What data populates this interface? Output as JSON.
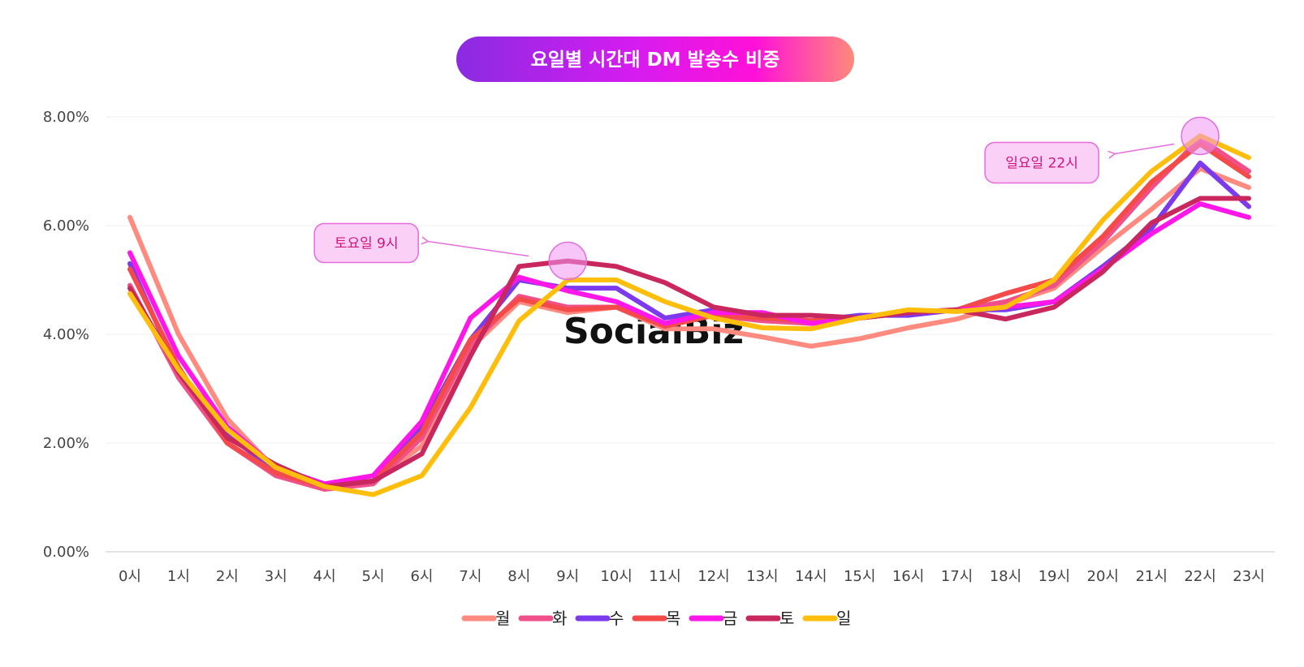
{
  "chart_data": {
    "type": "line",
    "title": "요일별 시간대 DM 발송수 비중",
    "x": [
      "0시",
      "1시",
      "2시",
      "3시",
      "4시",
      "5시",
      "6시",
      "7시",
      "8시",
      "9시",
      "10시",
      "11시",
      "12시",
      "13시",
      "14시",
      "15시",
      "16시",
      "17시",
      "18시",
      "19시",
      "20시",
      "21시",
      "22시",
      "23시"
    ],
    "ylim": [
      0,
      8
    ],
    "yticks": [
      0,
      2,
      4,
      6,
      8
    ],
    "ytick_labels": [
      "0.00%",
      "2.00%",
      "4.00%",
      "6.00%",
      "8.00%"
    ],
    "grid": true,
    "legend_position": "bottom-center",
    "series": [
      {
        "name": "월",
        "color": "#ff8a80",
        "values": [
          6.15,
          4.0,
          2.45,
          1.5,
          1.2,
          1.3,
          1.95,
          3.75,
          4.6,
          4.4,
          4.5,
          4.1,
          4.1,
          3.95,
          3.78,
          3.92,
          4.12,
          4.28,
          4.55,
          4.85,
          5.6,
          6.3,
          7.05,
          6.7
        ]
      },
      {
        "name": "화",
        "color": "#f0508a",
        "values": [
          4.9,
          3.2,
          2.0,
          1.4,
          1.15,
          1.25,
          2.1,
          3.8,
          4.7,
          4.5,
          4.5,
          4.15,
          4.35,
          4.25,
          4.2,
          4.3,
          4.4,
          4.45,
          4.6,
          4.9,
          5.7,
          6.7,
          7.6,
          7.0
        ]
      },
      {
        "name": "수",
        "color": "#7c3aed",
        "values": [
          5.3,
          3.3,
          2.15,
          1.5,
          1.2,
          1.3,
          2.3,
          3.9,
          5.0,
          4.85,
          4.85,
          4.3,
          4.45,
          4.3,
          4.25,
          4.35,
          4.35,
          4.45,
          4.45,
          4.6,
          5.25,
          5.95,
          7.15,
          6.35
        ]
      },
      {
        "name": "목",
        "color": "#f44a4a",
        "values": [
          5.2,
          3.4,
          2.0,
          1.45,
          1.2,
          1.3,
          2.2,
          3.9,
          4.65,
          4.45,
          4.5,
          4.15,
          4.35,
          4.3,
          4.25,
          4.3,
          4.4,
          4.45,
          4.75,
          5.0,
          5.8,
          6.8,
          7.5,
          6.9
        ]
      },
      {
        "name": "금",
        "color": "#ff16e8",
        "values": [
          5.5,
          3.6,
          2.3,
          1.55,
          1.25,
          1.4,
          2.4,
          4.3,
          5.05,
          4.8,
          4.6,
          4.2,
          4.4,
          4.4,
          4.2,
          4.3,
          4.4,
          4.45,
          4.5,
          4.6,
          5.2,
          5.85,
          6.4,
          6.15
        ]
      },
      {
        "name": "토",
        "color": "#c8285e",
        "values": [
          4.85,
          3.3,
          2.1,
          1.6,
          1.2,
          1.3,
          1.8,
          3.6,
          5.25,
          5.35,
          5.25,
          4.95,
          4.5,
          4.35,
          4.35,
          4.3,
          4.4,
          4.45,
          4.28,
          4.5,
          5.15,
          6.05,
          6.5,
          6.5
        ]
      },
      {
        "name": "일",
        "color": "#ffbe0b",
        "values": [
          4.75,
          3.35,
          2.25,
          1.55,
          1.2,
          1.05,
          1.4,
          2.65,
          4.25,
          5.0,
          5.0,
          4.6,
          4.3,
          4.12,
          4.1,
          4.3,
          4.45,
          4.42,
          4.5,
          5.0,
          6.1,
          7.0,
          7.65,
          7.25
        ]
      }
    ],
    "annotations": [
      {
        "text": "토요일 9시",
        "series": "토",
        "x": "9시",
        "y": 5.35
      },
      {
        "text": "일요일 22시",
        "series": "일",
        "x": "22시",
        "y": 7.65
      }
    ],
    "watermark": "SocialBiz"
  }
}
